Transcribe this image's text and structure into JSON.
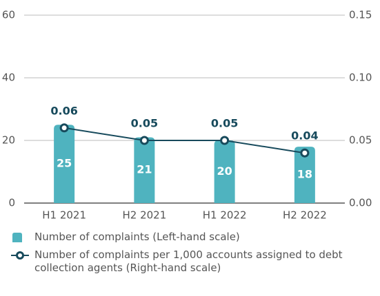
{
  "chart_data": {
    "type": "bar",
    "categories": [
      "H1 2021",
      "H2 2021",
      "H1 2022",
      "H2 2022"
    ],
    "series": [
      {
        "name": "Number of complaints (Left-hand scale)",
        "type": "bar",
        "color": "#4fb3bf",
        "values": [
          25,
          21,
          20,
          18
        ]
      },
      {
        "name": "Number of complaints per 1,000 accounts assigned to debt collection agents (Right-hand scale)",
        "type": "line",
        "axis": "y2",
        "color": "#174a5c",
        "values": [
          0.06,
          0.05,
          0.05,
          0.04
        ]
      }
    ],
    "ylim": [
      0,
      60
    ],
    "yticks": [
      0,
      20,
      40,
      60
    ],
    "y2lim": [
      0,
      0.15
    ],
    "y2ticks": [
      {
        "value": 0,
        "label": "0.00"
      },
      0.05,
      {
        "value": 0.1,
        "label": "0.10"
      },
      0.15
    ],
    "grid": true
  }
}
